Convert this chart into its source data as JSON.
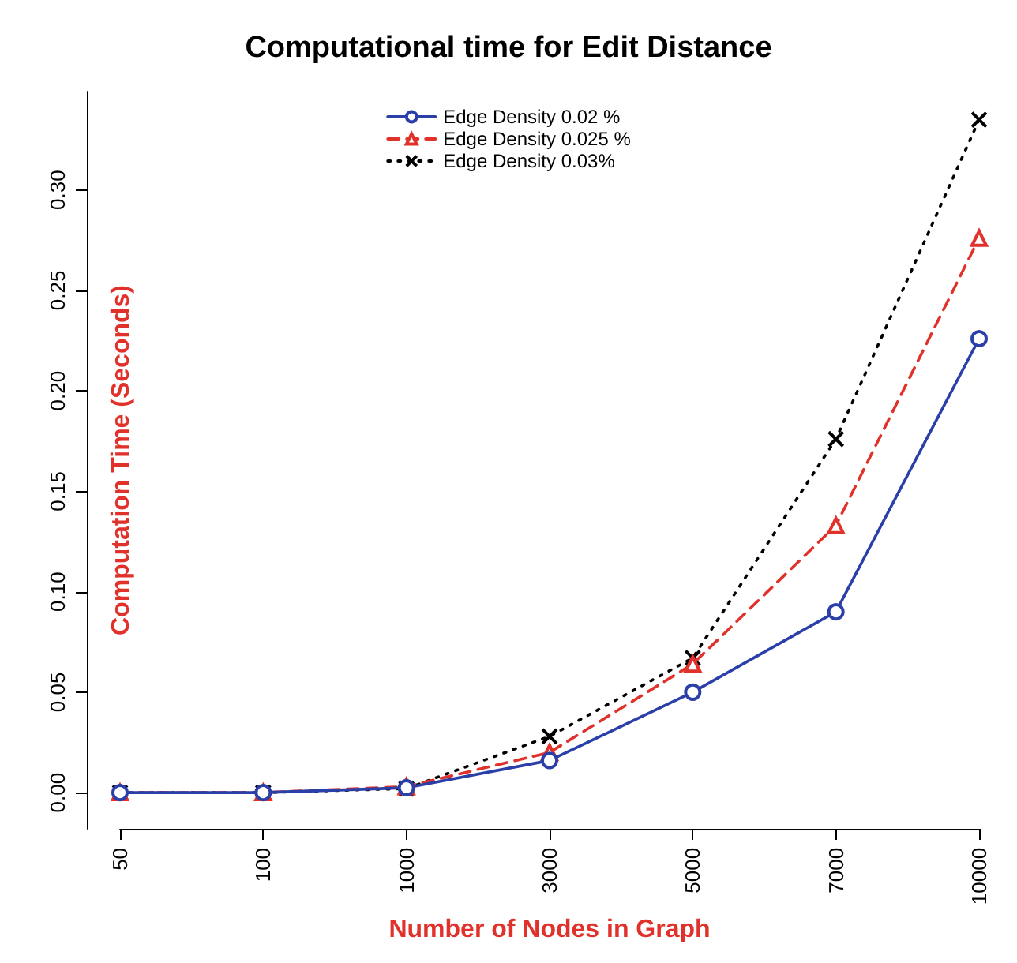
{
  "chart_data": {
    "type": "line",
    "title": "Computational time for Edit Distance",
    "xlabel": "Number of Nodes in Graph",
    "ylabel": "Computation Time (Seconds)",
    "categories": [
      "50",
      "100",
      "1000",
      "3000",
      "5000",
      "7000",
      "10000"
    ],
    "series": [
      {
        "name": "Edge Density 0.02 %",
        "color": "#2b3fa8",
        "marker": "circle",
        "line_style": "solid",
        "values": [
          0,
          0,
          0.0024,
          0.016,
          0.05,
          0.09,
          0.226
        ]
      },
      {
        "name": "Edge Density 0.025 %",
        "color": "#e0312b",
        "marker": "triangle",
        "line_style": "dashed",
        "values": [
          0,
          0,
          0.003,
          0.02,
          0.064,
          0.133,
          0.276
        ]
      },
      {
        "name": "Edge Density 0.03%",
        "color": "#000000",
        "marker": "cross",
        "line_style": "dotted",
        "values": [
          0,
          0,
          0.002,
          0.028,
          0.067,
          0.176,
          0.335
        ]
      }
    ],
    "ylim": [
      -0.018,
      0.349
    ],
    "yticks": [
      {
        "value": 0,
        "label": "0.00"
      },
      {
        "value": 0.05,
        "label": "0.05"
      },
      {
        "value": 0.1,
        "label": "0.10"
      },
      {
        "value": 0.15,
        "label": "0.15"
      },
      {
        "value": 0.2,
        "label": "0.20"
      },
      {
        "value": 0.25,
        "label": "0.25"
      },
      {
        "value": 0.3,
        "label": "0.30"
      }
    ],
    "grid": false,
    "legend": "top"
  }
}
